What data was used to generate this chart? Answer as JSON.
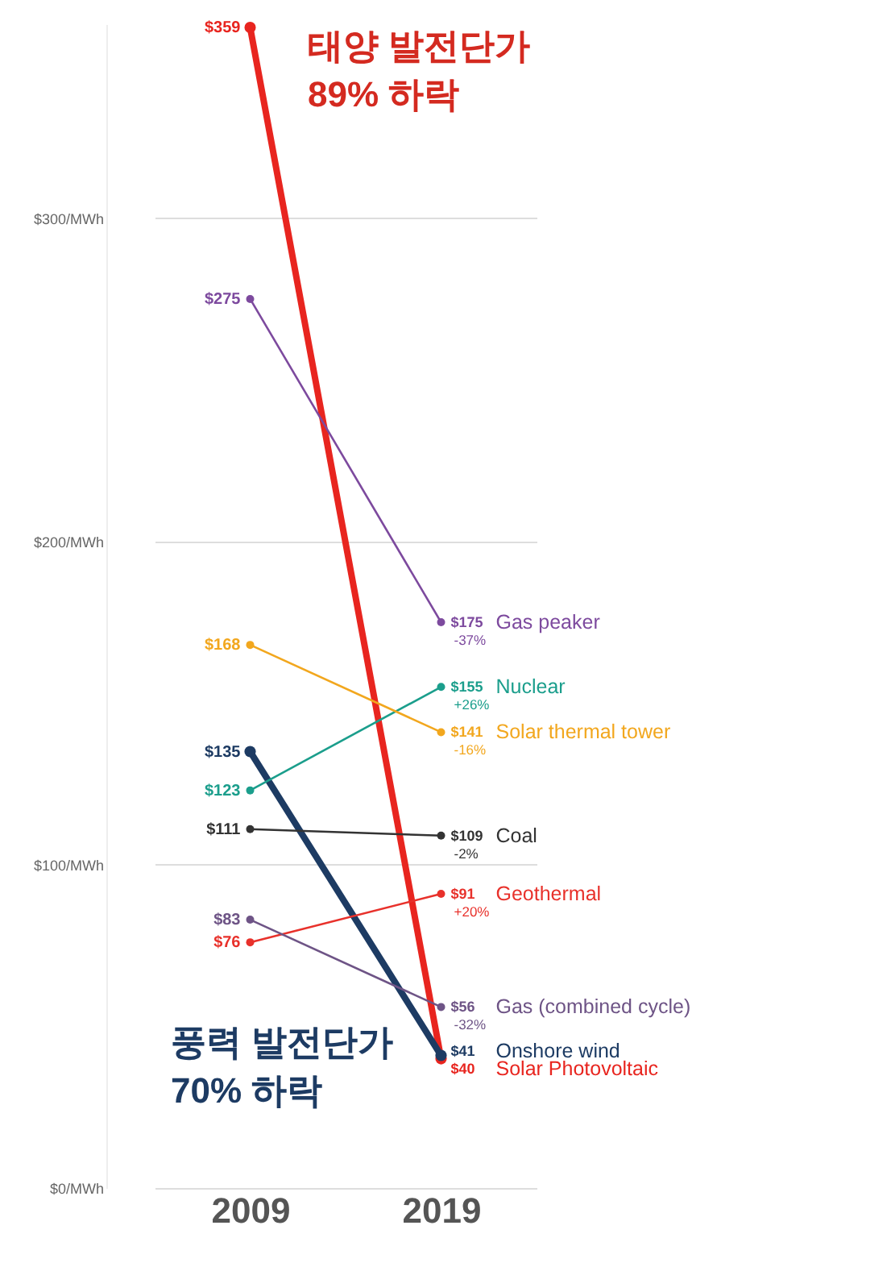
{
  "chart_data": {
    "type": "line",
    "categories": [
      "2009",
      "2019"
    ],
    "series": [
      {
        "name": "Solar Photovoltaic",
        "color": "#e8251f",
        "values": [
          359,
          40
        ],
        "value_labels": [
          "$359",
          "$40"
        ]
      },
      {
        "name": "Onshore wind",
        "color": "#1d3b63",
        "values": [
          135,
          41
        ],
        "value_labels": [
          "$135",
          "$41"
        ]
      },
      {
        "name": "Gas peaker",
        "color": "#7d4a9e",
        "values": [
          275,
          175
        ],
        "value_labels": [
          "$275",
          "$175"
        ]
      },
      {
        "name": "Nuclear",
        "color": "#1b9e8c",
        "values": [
          123,
          155
        ],
        "value_labels": [
          "$123",
          "$155"
        ]
      },
      {
        "name": "Solar thermal tower",
        "color": "#f2a71e",
        "values": [
          168,
          141
        ],
        "value_labels": [
          "$168",
          "$141"
        ]
      },
      {
        "name": "Coal",
        "color": "#333333",
        "values": [
          111,
          109
        ],
        "value_labels": [
          "$111",
          "$109"
        ]
      },
      {
        "name": "Geothermal",
        "color": "#e8312b",
        "values": [
          76,
          91
        ],
        "value_labels": [
          "$76",
          "$91"
        ]
      },
      {
        "name": "Gas (combined cycle)",
        "color": "#6e5486",
        "values": [
          83,
          56
        ],
        "value_labels": [
          "$83",
          "$56"
        ]
      }
    ],
    "ylim": [
      0,
      360
    ],
    "yticks": [
      {
        "value": 0,
        "label": "$0/MWh"
      },
      {
        "value": 100,
        "label": "$100/MWh"
      },
      {
        "value": 200,
        "label": "$200/MWh"
      },
      {
        "value": 300,
        "label": "$300/MWh"
      }
    ],
    "grid": "y",
    "marker": "circle",
    "annotations": [
      "태양 발전단가",
      "89% 하락",
      "풍력 발전단가",
      "70% 하락",
      {
        "text": "-37%",
        "x": "2019",
        "y": 175
      },
      {
        "text": "+26%",
        "x": "2019",
        "y": 155
      },
      {
        "text": "-16%",
        "x": "2019",
        "y": 141
      },
      {
        "text": "-2%",
        "x": "2019",
        "y": 109
      },
      {
        "text": "+20%",
        "x": "2019",
        "y": 91
      },
      {
        "text": "-32%",
        "x": "2019",
        "y": 56
      }
    ]
  }
}
